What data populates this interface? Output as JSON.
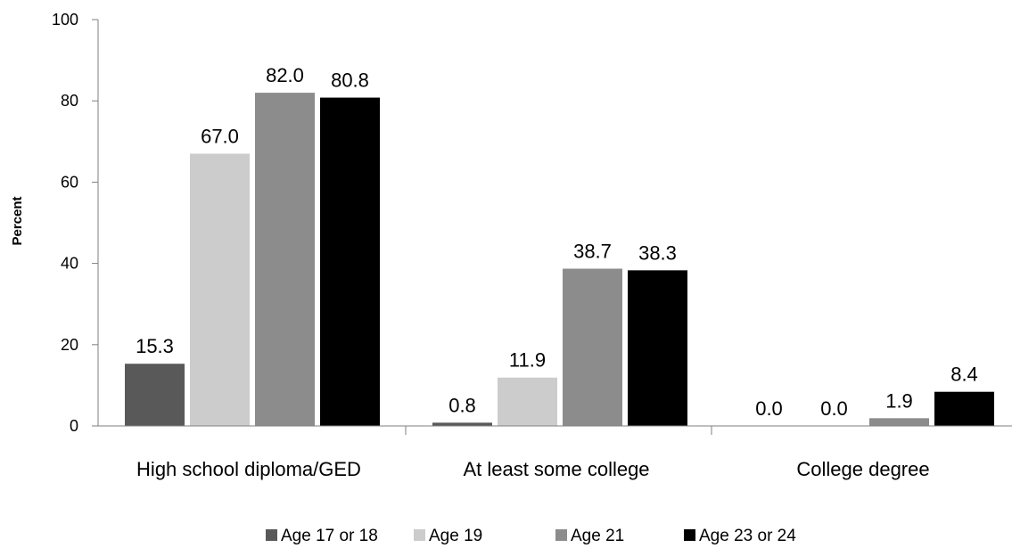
{
  "chart_data": {
    "type": "bar",
    "title": "",
    "xlabel": "",
    "ylabel": "Percent",
    "ylim": [
      0,
      100
    ],
    "yticks": [
      0,
      20,
      40,
      60,
      80,
      100
    ],
    "grid": false,
    "legend_position": "bottom",
    "categories": [
      "High school diploma/GED",
      "At least some college",
      "College degree"
    ],
    "series": [
      {
        "name": "Age 17 or 18",
        "color": "#595959",
        "values": [
          15.3,
          0.8,
          0.0
        ],
        "labels": [
          "15.3",
          "0.8",
          "0.0"
        ]
      },
      {
        "name": "Age 19",
        "color": "#cccccc",
        "values": [
          67.0,
          11.9,
          0.0
        ],
        "labels": [
          "67.0",
          "11.9",
          "0.0"
        ]
      },
      {
        "name": "Age 21",
        "color": "#8c8c8c",
        "values": [
          82.0,
          38.7,
          1.9
        ],
        "labels": [
          "82.0",
          "38.7",
          "1.9"
        ]
      },
      {
        "name": "Age 23 or 24",
        "color": "#000000",
        "values": [
          80.8,
          38.3,
          8.4
        ],
        "labels": [
          "80.8",
          "38.3",
          "8.4"
        ]
      }
    ]
  }
}
